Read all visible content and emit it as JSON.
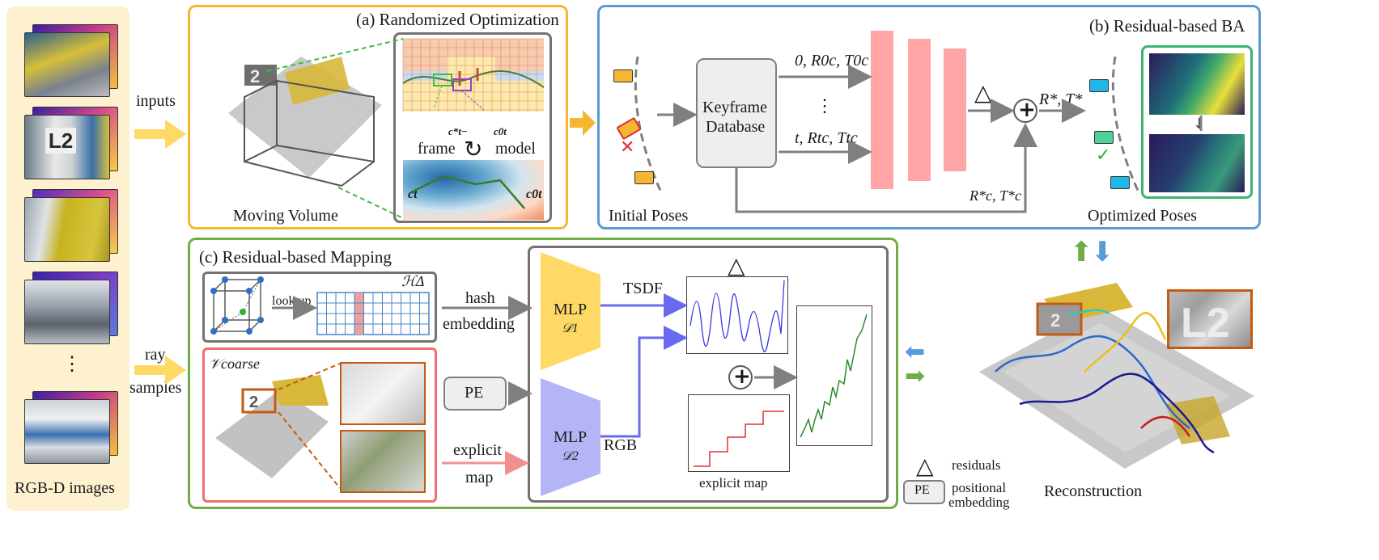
{
  "inputs": {
    "caption": "RGB-D images",
    "dots": "⋮"
  },
  "arrows": {
    "inputs": "inputs",
    "ray_line1": "ray",
    "ray_line2": "samples",
    "hash_line1": "hash",
    "hash_line2": "embedding",
    "explicit_line1": "explicit",
    "explicit_line2": "map",
    "tsdf": "TSDF",
    "rgb": "RGB",
    "lookup": "look up"
  },
  "panel_a": {
    "title": "(a) Randomized Optimization",
    "moving_volume": "Moving Volume",
    "frame": "frame",
    "model": "model",
    "c_star_prev": "c*t−",
    "c_zero": "c0t",
    "ct": "ct",
    "ct0": "c0t"
  },
  "panel_b": {
    "title": "(b) Residual-based BA",
    "initial_poses": "Initial Poses",
    "keyframe_line1": "Keyframe",
    "keyframe_line2": "Database",
    "pose0": "0, R0c, T0c",
    "vdots": "⋮",
    "poset": "t, Rtc, Ttc",
    "r_star_t_star": "R*, T*",
    "r_star_c": "R*c, T*c",
    "optimized_poses": "Optimized Poses",
    "plus": "+"
  },
  "panel_c": {
    "title": "(c) Residual-based Mapping",
    "h_delta": "ℋΔ",
    "v_coarse": "𝒱coarse",
    "pe": "PE",
    "mlp1": "MLP",
    "mlp1_sub": "𝒟1",
    "mlp2": "MLP",
    "mlp2_sub": "𝒟2",
    "explicit_map": "explicit map",
    "plus": "+"
  },
  "legend": {
    "residuals": "residuals",
    "pe": "PE",
    "positional_line1": "positional",
    "positional_line2": "embedding"
  },
  "reconstruction": {
    "caption": "Reconstruction"
  },
  "colors": {
    "yellow_border": "#f5b731",
    "blue_border": "#5b9bd5",
    "green_border": "#70ad47",
    "red_border": "#ef6f6f",
    "inputs_bg": "#fdf1cf",
    "mlp_yellow": "#ffd966",
    "mlp_purple": "#b4b4f7",
    "bars_pink": "#ffa5a5"
  }
}
